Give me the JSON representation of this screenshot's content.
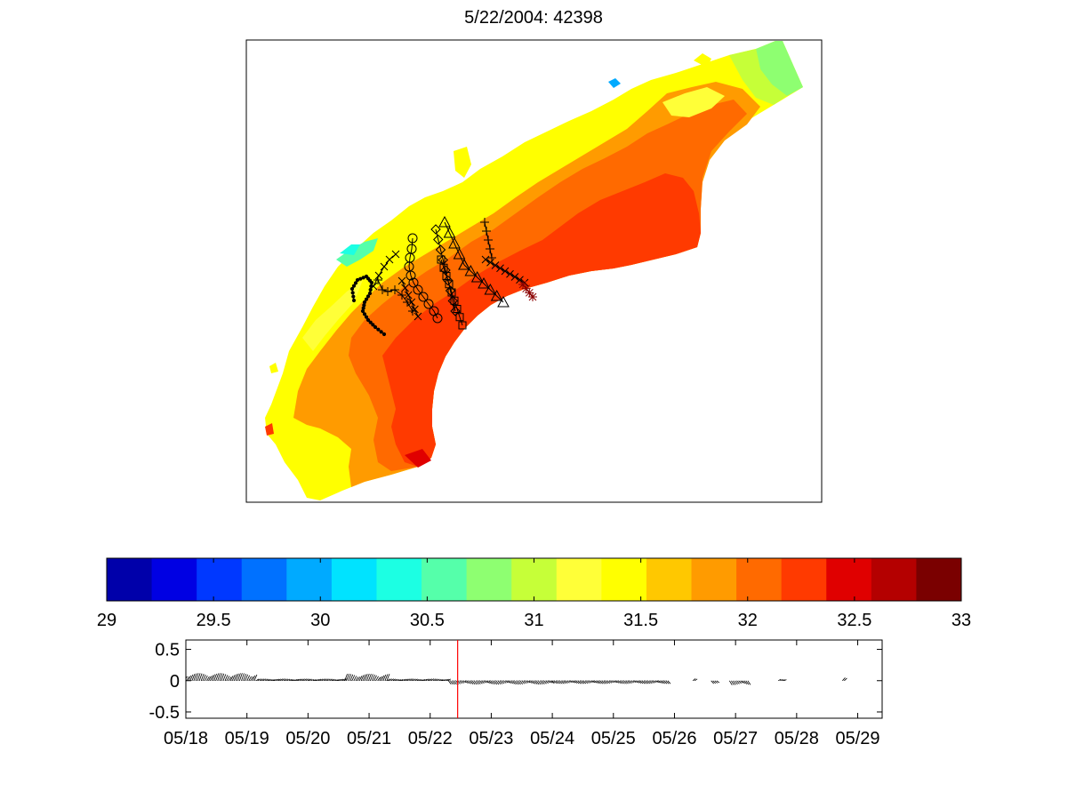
{
  "figure": {
    "title": "5/22/2004: 42398"
  },
  "chart_data": [
    {
      "type": "heatmap",
      "title": "5/22/2004: 42398",
      "map_extent": {
        "xlim": [
          0,
          1
        ],
        "ylim": [
          0,
          1
        ]
      },
      "legend": {
        "markers": [
          "dot",
          "plus",
          "x",
          "circle",
          "square",
          "diamond",
          "triangle",
          "asterisk"
        ]
      }
    },
    {
      "type": "heatmap",
      "colorbar": {
        "min": 29,
        "max": 33,
        "step": 0.2,
        "tick_labels": [
          "29",
          "29.5",
          "30",
          "30.5",
          "31",
          "31.5",
          "32",
          "32.5",
          "33"
        ],
        "tick_values": [
          29,
          29.5,
          30,
          30.5,
          31,
          31.5,
          32,
          32.5,
          33
        ],
        "colors": [
          "#0000AA",
          "#0000E3",
          "#0038FF",
          "#0071FF",
          "#00AAFF",
          "#00E3FF",
          "#1CFFE3",
          "#55FFAA",
          "#8EFF71",
          "#C6FF38",
          "#FFFF38",
          "#FFFF00",
          "#FFC800",
          "#FF9B00",
          "#FF6A00",
          "#FF3A00",
          "#E00000",
          "#B40000",
          "#7A0000"
        ]
      }
    },
    {
      "type": "line",
      "xlabel": "",
      "ylabel": "",
      "ylim": [
        -0.6,
        0.65
      ],
      "xlim": [
        0,
        11.4
      ],
      "y_tick_labels": [
        "0.5",
        "0",
        "-0.5"
      ],
      "y_ticks": [
        0.5,
        0,
        -0.5
      ],
      "x_tick_labels": [
        "05/18",
        "05/19",
        "05/20",
        "05/21",
        "05/22",
        "05/23",
        "05/24",
        "05/25",
        "05/26",
        "05/27",
        "05/28",
        "05/29"
      ],
      "x_ticks": [
        0,
        1,
        2,
        3,
        4,
        5,
        6,
        7,
        8,
        9,
        10,
        11
      ],
      "current_time_marker": {
        "x": 4.45,
        "color": "#ff0000"
      },
      "series": [
        {
          "name": "",
          "segments": [
            {
              "start": -0.05,
              "end": 1.15,
              "amplitude": 0.12
            },
            {
              "start": 1.15,
              "end": 2.6,
              "amplitude": 0.03
            },
            {
              "start": 2.6,
              "end": 3.3,
              "amplitude": 0.11
            },
            {
              "start": 3.3,
              "end": 4.3,
              "amplitude": 0.03
            },
            {
              "start": 4.3,
              "end": 6.0,
              "amplitude": -0.06
            },
            {
              "start": 6.0,
              "end": 7.9,
              "amplitude": -0.05
            },
            {
              "start": 8.3,
              "end": 8.35,
              "amplitude": 0.04
            },
            {
              "start": 8.6,
              "end": 8.7,
              "amplitude": -0.05
            },
            {
              "start": 8.9,
              "end": 9.2,
              "amplitude": -0.07
            },
            {
              "start": 9.7,
              "end": 9.8,
              "amplitude": 0.03
            },
            {
              "start": 10.75,
              "end": 10.8,
              "amplitude": 0.06
            }
          ]
        }
      ]
    }
  ]
}
